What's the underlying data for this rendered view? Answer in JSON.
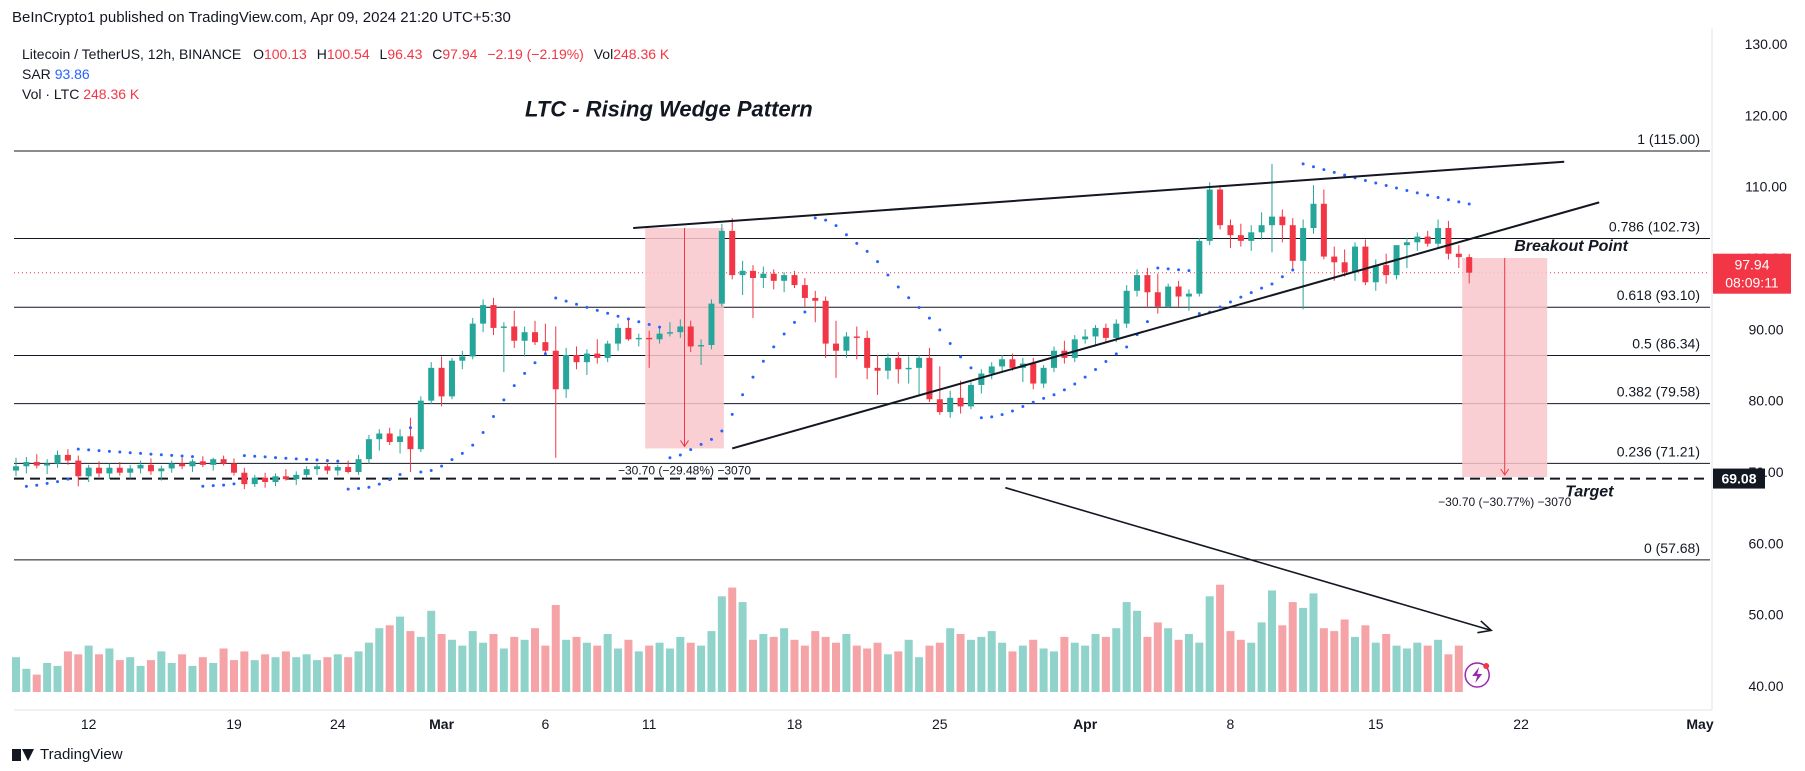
{
  "header": {
    "published": "BeInCrypto1 published on TradingView.com, Apr 09, 2024 21:20 UTC+5:30"
  },
  "legend": {
    "symbol": "Litecoin / TetherUS, 12h, BINANCE",
    "o_label": "O",
    "o": "100.13",
    "h_label": "H",
    "h": "100.54",
    "l_label": "L",
    "l": "96.43",
    "c_label": "C",
    "c": "97.94",
    "change": "−2.19 (−2.19%)",
    "vol_label": "Vol",
    "vol": "248.36 K",
    "sar_label": "SAR",
    "sar": "93.86",
    "vol_ltc_label": "Vol · LTC",
    "vol_ltc": "248.36 K"
  },
  "footer": {
    "brand": "TradingView"
  },
  "colors": {
    "up": "#26a69a",
    "down": "#f23645",
    "vol_up": "#8fd3cb",
    "vol_down": "#f5a3a6",
    "sar": "#2962ff",
    "box": "#f9c7cb"
  },
  "chart_data": {
    "type": "candlestick",
    "title": "LTC - Rising Wedge Pattern",
    "ylim": [
      38.5,
      131.5
    ],
    "y_ticks": [
      40,
      50,
      60,
      70,
      80,
      90,
      100,
      110,
      120,
      130
    ],
    "y_tick_labels": [
      "40.00",
      "50.00",
      "60.00",
      "70.00",
      "80.00",
      "90.00",
      "100.00",
      "110.00",
      "120.00",
      "130.00"
    ],
    "x_ticks": [
      {
        "label": "12",
        "bar": 7
      },
      {
        "label": "19",
        "bar": 21
      },
      {
        "label": "24",
        "bar": 31
      },
      {
        "label": "Mar",
        "bar": 41
      },
      {
        "label": "6",
        "bar": 51
      },
      {
        "label": "11",
        "bar": 61
      },
      {
        "label": "18",
        "bar": 75
      },
      {
        "label": "25",
        "bar": 89
      },
      {
        "label": "Apr",
        "bar": 103
      },
      {
        "label": "8",
        "bar": 117
      },
      {
        "label": "15",
        "bar": 131
      },
      {
        "label": "22",
        "bar": 145
      },
      {
        "label": "May",
        "bar": 163
      }
    ],
    "bar_count_visible": 164,
    "candles": [
      {
        "o": 70.2,
        "h": 72.0,
        "l": 69.4,
        "c": 70.8
      },
      {
        "o": 70.8,
        "h": 72.1,
        "l": 69.8,
        "c": 71.4
      },
      {
        "o": 71.4,
        "h": 72.5,
        "l": 70.5,
        "c": 70.9
      },
      {
        "o": 70.9,
        "h": 71.8,
        "l": 69.7,
        "c": 71.2
      },
      {
        "o": 71.2,
        "h": 73.0,
        "l": 70.6,
        "c": 72.4
      },
      {
        "o": 72.4,
        "h": 73.2,
        "l": 71.0,
        "c": 71.6
      },
      {
        "o": 71.6,
        "h": 72.3,
        "l": 68.0,
        "c": 69.4
      },
      {
        "o": 69.4,
        "h": 71.0,
        "l": 68.6,
        "c": 70.6
      },
      {
        "o": 70.6,
        "h": 71.5,
        "l": 69.3,
        "c": 69.8
      },
      {
        "o": 69.8,
        "h": 71.2,
        "l": 69.0,
        "c": 70.6
      },
      {
        "o": 70.6,
        "h": 71.4,
        "l": 69.5,
        "c": 69.9
      },
      {
        "o": 69.9,
        "h": 71.0,
        "l": 69.1,
        "c": 70.5
      },
      {
        "o": 70.5,
        "h": 71.6,
        "l": 69.8,
        "c": 71.0
      },
      {
        "o": 71.0,
        "h": 71.9,
        "l": 69.6,
        "c": 70.1
      },
      {
        "o": 70.1,
        "h": 70.9,
        "l": 68.8,
        "c": 70.5
      },
      {
        "o": 70.5,
        "h": 71.6,
        "l": 69.9,
        "c": 71.2
      },
      {
        "o": 71.2,
        "h": 72.0,
        "l": 70.4,
        "c": 70.8
      },
      {
        "o": 70.8,
        "h": 71.8,
        "l": 70.0,
        "c": 71.5
      },
      {
        "o": 71.5,
        "h": 72.2,
        "l": 70.7,
        "c": 71.0
      },
      {
        "o": 71.0,
        "h": 72.0,
        "l": 70.2,
        "c": 71.8
      },
      {
        "o": 71.8,
        "h": 72.3,
        "l": 70.9,
        "c": 71.2
      },
      {
        "o": 71.2,
        "h": 71.9,
        "l": 69.5,
        "c": 69.9
      },
      {
        "o": 69.9,
        "h": 70.6,
        "l": 67.6,
        "c": 68.3
      },
      {
        "o": 68.3,
        "h": 69.6,
        "l": 67.9,
        "c": 69.2
      },
      {
        "o": 69.2,
        "h": 69.9,
        "l": 67.8,
        "c": 68.6
      },
      {
        "o": 68.6,
        "h": 69.8,
        "l": 68.0,
        "c": 69.4
      },
      {
        "o": 69.4,
        "h": 70.4,
        "l": 68.8,
        "c": 69.0
      },
      {
        "o": 69.0,
        "h": 70.1,
        "l": 68.2,
        "c": 69.6
      },
      {
        "o": 69.6,
        "h": 70.8,
        "l": 69.2,
        "c": 70.4
      },
      {
        "o": 70.4,
        "h": 71.2,
        "l": 69.6,
        "c": 70.8
      },
      {
        "o": 70.8,
        "h": 71.3,
        "l": 69.7,
        "c": 70.2
      },
      {
        "o": 70.2,
        "h": 71.0,
        "l": 69.5,
        "c": 70.7
      },
      {
        "o": 70.7,
        "h": 71.6,
        "l": 69.8,
        "c": 70.0
      },
      {
        "o": 70.0,
        "h": 72.4,
        "l": 69.6,
        "c": 71.8
      },
      {
        "o": 71.8,
        "h": 75.2,
        "l": 71.2,
        "c": 74.6
      },
      {
        "o": 74.6,
        "h": 76.0,
        "l": 73.0,
        "c": 75.4
      },
      {
        "o": 75.4,
        "h": 76.2,
        "l": 73.8,
        "c": 74.2
      },
      {
        "o": 74.2,
        "h": 76.0,
        "l": 72.6,
        "c": 75.0
      },
      {
        "o": 75.0,
        "h": 77.6,
        "l": 70.0,
        "c": 73.2
      },
      {
        "o": 73.2,
        "h": 80.6,
        "l": 72.8,
        "c": 80.0
      },
      {
        "o": 80.0,
        "h": 85.4,
        "l": 79.5,
        "c": 84.6
      },
      {
        "o": 84.6,
        "h": 86.2,
        "l": 79.2,
        "c": 80.6
      },
      {
        "o": 80.6,
        "h": 86.0,
        "l": 80.2,
        "c": 85.6
      },
      {
        "o": 85.6,
        "h": 87.0,
        "l": 84.4,
        "c": 86.2
      },
      {
        "o": 86.2,
        "h": 91.6,
        "l": 85.8,
        "c": 90.8
      },
      {
        "o": 90.8,
        "h": 94.2,
        "l": 89.6,
        "c": 93.4
      },
      {
        "o": 93.4,
        "h": 94.4,
        "l": 89.2,
        "c": 90.2
      },
      {
        "o": 90.2,
        "h": 91.0,
        "l": 84.0,
        "c": 90.4
      },
      {
        "o": 90.4,
        "h": 92.6,
        "l": 87.4,
        "c": 88.4
      },
      {
        "o": 88.4,
        "h": 90.4,
        "l": 86.2,
        "c": 89.6
      },
      {
        "o": 89.6,
        "h": 91.2,
        "l": 87.8,
        "c": 88.2
      },
      {
        "o": 88.2,
        "h": 90.8,
        "l": 86.6,
        "c": 87.0
      },
      {
        "o": 87.0,
        "h": 90.4,
        "l": 72.0,
        "c": 81.6
      },
      {
        "o": 81.6,
        "h": 87.4,
        "l": 80.4,
        "c": 86.4
      },
      {
        "o": 86.4,
        "h": 87.6,
        "l": 84.4,
        "c": 85.4
      },
      {
        "o": 85.4,
        "h": 87.2,
        "l": 83.6,
        "c": 86.6
      },
      {
        "o": 86.6,
        "h": 88.6,
        "l": 85.2,
        "c": 86.0
      },
      {
        "o": 86.0,
        "h": 88.4,
        "l": 85.4,
        "c": 88.0
      },
      {
        "o": 88.0,
        "h": 90.8,
        "l": 87.0,
        "c": 90.2
      },
      {
        "o": 90.2,
        "h": 91.4,
        "l": 88.4,
        "c": 88.6
      },
      {
        "o": 88.6,
        "h": 89.4,
        "l": 87.6,
        "c": 88.8
      },
      {
        "o": 88.8,
        "h": 89.8,
        "l": 84.6,
        "c": 88.6
      },
      {
        "o": 88.6,
        "h": 90.2,
        "l": 88.0,
        "c": 89.4
      },
      {
        "o": 89.4,
        "h": 91.0,
        "l": 89.0,
        "c": 89.6
      },
      {
        "o": 89.6,
        "h": 91.4,
        "l": 88.8,
        "c": 90.4
      },
      {
        "o": 90.4,
        "h": 91.2,
        "l": 86.8,
        "c": 87.6
      },
      {
        "o": 87.6,
        "h": 88.6,
        "l": 85.0,
        "c": 87.8
      },
      {
        "o": 87.8,
        "h": 94.2,
        "l": 87.2,
        "c": 93.6
      },
      {
        "o": 93.6,
        "h": 104.8,
        "l": 93.2,
        "c": 103.8
      },
      {
        "o": 103.8,
        "h": 105.6,
        "l": 97.0,
        "c": 97.6
      },
      {
        "o": 97.6,
        "h": 99.6,
        "l": 94.8,
        "c": 98.2
      },
      {
        "o": 98.2,
        "h": 99.0,
        "l": 91.6,
        "c": 97.2
      },
      {
        "o": 97.2,
        "h": 98.8,
        "l": 95.8,
        "c": 97.8
      },
      {
        "o": 97.8,
        "h": 98.4,
        "l": 95.6,
        "c": 96.8
      },
      {
        "o": 96.8,
        "h": 98.0,
        "l": 95.2,
        "c": 97.6
      },
      {
        "o": 97.6,
        "h": 98.2,
        "l": 95.8,
        "c": 96.2
      },
      {
        "o": 96.2,
        "h": 97.2,
        "l": 93.2,
        "c": 94.4
      },
      {
        "o": 94.4,
        "h": 95.4,
        "l": 91.0,
        "c": 94.0
      },
      {
        "o": 94.0,
        "h": 94.6,
        "l": 86.0,
        "c": 88.0
      },
      {
        "o": 88.0,
        "h": 91.2,
        "l": 83.2,
        "c": 87.0
      },
      {
        "o": 87.0,
        "h": 89.6,
        "l": 86.0,
        "c": 89.0
      },
      {
        "o": 89.0,
        "h": 90.4,
        "l": 85.8,
        "c": 88.8
      },
      {
        "o": 88.8,
        "h": 89.8,
        "l": 83.0,
        "c": 84.6
      },
      {
        "o": 84.6,
        "h": 86.4,
        "l": 80.8,
        "c": 84.2
      },
      {
        "o": 84.2,
        "h": 86.6,
        "l": 83.0,
        "c": 86.0
      },
      {
        "o": 86.0,
        "h": 86.8,
        "l": 82.4,
        "c": 84.4
      },
      {
        "o": 84.4,
        "h": 86.2,
        "l": 82.4,
        "c": 84.6
      },
      {
        "o": 84.6,
        "h": 86.4,
        "l": 80.6,
        "c": 86.0
      },
      {
        "o": 86.0,
        "h": 87.4,
        "l": 79.8,
        "c": 80.2
      },
      {
        "o": 80.2,
        "h": 84.8,
        "l": 78.0,
        "c": 78.4
      },
      {
        "o": 78.4,
        "h": 81.4,
        "l": 77.6,
        "c": 80.4
      },
      {
        "o": 80.4,
        "h": 82.8,
        "l": 78.2,
        "c": 79.2
      },
      {
        "o": 79.2,
        "h": 82.6,
        "l": 78.8,
        "c": 82.2
      },
      {
        "o": 82.2,
        "h": 84.4,
        "l": 81.0,
        "c": 83.8
      },
      {
        "o": 83.8,
        "h": 85.4,
        "l": 83.0,
        "c": 84.8
      },
      {
        "o": 84.8,
        "h": 86.4,
        "l": 84.0,
        "c": 85.8
      },
      {
        "o": 85.8,
        "h": 86.6,
        "l": 84.2,
        "c": 84.6
      },
      {
        "o": 84.6,
        "h": 86.0,
        "l": 82.6,
        "c": 85.2
      },
      {
        "o": 85.2,
        "h": 86.0,
        "l": 81.6,
        "c": 82.4
      },
      {
        "o": 82.4,
        "h": 85.0,
        "l": 81.8,
        "c": 84.6
      },
      {
        "o": 84.6,
        "h": 87.6,
        "l": 84.0,
        "c": 87.0
      },
      {
        "o": 87.0,
        "h": 88.4,
        "l": 85.2,
        "c": 86.0
      },
      {
        "o": 86.0,
        "h": 89.2,
        "l": 85.4,
        "c": 88.6
      },
      {
        "o": 88.6,
        "h": 90.0,
        "l": 88.0,
        "c": 89.0
      },
      {
        "o": 89.0,
        "h": 90.6,
        "l": 87.6,
        "c": 90.2
      },
      {
        "o": 90.2,
        "h": 90.8,
        "l": 88.2,
        "c": 88.8
      },
      {
        "o": 88.8,
        "h": 91.4,
        "l": 88.2,
        "c": 90.8
      },
      {
        "o": 90.8,
        "h": 96.2,
        "l": 90.2,
        "c": 95.4
      },
      {
        "o": 95.4,
        "h": 98.4,
        "l": 94.6,
        "c": 97.6
      },
      {
        "o": 97.6,
        "h": 98.6,
        "l": 93.0,
        "c": 95.2
      },
      {
        "o": 95.2,
        "h": 97.8,
        "l": 92.2,
        "c": 93.2
      },
      {
        "o": 93.2,
        "h": 96.4,
        "l": 93.0,
        "c": 96.0
      },
      {
        "o": 96.0,
        "h": 96.8,
        "l": 93.2,
        "c": 94.6
      },
      {
        "o": 94.6,
        "h": 95.6,
        "l": 92.6,
        "c": 95.0
      },
      {
        "o": 95.0,
        "h": 102.8,
        "l": 94.6,
        "c": 102.4
      },
      {
        "o": 102.4,
        "h": 110.6,
        "l": 101.8,
        "c": 109.6
      },
      {
        "o": 109.6,
        "h": 110.2,
        "l": 104.0,
        "c": 104.6
      },
      {
        "o": 104.6,
        "h": 105.4,
        "l": 101.4,
        "c": 103.2
      },
      {
        "o": 103.2,
        "h": 104.8,
        "l": 101.6,
        "c": 102.4
      },
      {
        "o": 102.4,
        "h": 104.6,
        "l": 101.0,
        "c": 103.6
      },
      {
        "o": 103.6,
        "h": 106.4,
        "l": 102.6,
        "c": 104.6
      },
      {
        "o": 104.6,
        "h": 113.2,
        "l": 100.8,
        "c": 105.8
      },
      {
        "o": 105.8,
        "h": 106.8,
        "l": 102.2,
        "c": 104.6
      },
      {
        "o": 104.6,
        "h": 105.6,
        "l": 98.4,
        "c": 99.6
      },
      {
        "o": 99.6,
        "h": 105.4,
        "l": 92.8,
        "c": 104.2
      },
      {
        "o": 104.2,
        "h": 110.2,
        "l": 103.4,
        "c": 107.6
      },
      {
        "o": 107.6,
        "h": 109.6,
        "l": 99.8,
        "c": 100.2
      },
      {
        "o": 100.2,
        "h": 101.6,
        "l": 96.8,
        "c": 99.4
      },
      {
        "o": 99.4,
        "h": 101.2,
        "l": 97.4,
        "c": 98.0
      },
      {
        "o": 98.0,
        "h": 102.2,
        "l": 96.8,
        "c": 101.6
      },
      {
        "o": 101.6,
        "h": 102.6,
        "l": 96.2,
        "c": 96.6
      },
      {
        "o": 96.6,
        "h": 99.8,
        "l": 95.4,
        "c": 99.0
      },
      {
        "o": 99.0,
        "h": 100.6,
        "l": 96.4,
        "c": 97.6
      },
      {
        "o": 97.6,
        "h": 101.4,
        "l": 97.0,
        "c": 101.8
      },
      {
        "o": 101.8,
        "h": 102.8,
        "l": 98.6,
        "c": 102.2
      },
      {
        "o": 102.2,
        "h": 103.6,
        "l": 101.0,
        "c": 103.0
      },
      {
        "o": 103.0,
        "h": 103.8,
        "l": 101.6,
        "c": 102.0
      },
      {
        "o": 102.0,
        "h": 105.4,
        "l": 101.4,
        "c": 104.2
      },
      {
        "o": 104.2,
        "h": 105.2,
        "l": 99.8,
        "c": 100.6
      },
      {
        "o": 100.6,
        "h": 101.8,
        "l": 98.6,
        "c": 100.13
      },
      {
        "o": 100.13,
        "h": 100.54,
        "l": 96.43,
        "c": 97.94
      }
    ],
    "volume": [
      12,
      8,
      6,
      10,
      9,
      14,
      13,
      16,
      13,
      15,
      11,
      12,
      9,
      11,
      14,
      10,
      13,
      9,
      12,
      10,
      15,
      11,
      14,
      11,
      13,
      12,
      14,
      12,
      13,
      11,
      12,
      13,
      12,
      14,
      17,
      22,
      23,
      26,
      21,
      19,
      28,
      20,
      18,
      16,
      21,
      17,
      20,
      15,
      19,
      18,
      22,
      16,
      30,
      18,
      19,
      17,
      16,
      20,
      15,
      18,
      14,
      16,
      17,
      15,
      19,
      17,
      16,
      21,
      33,
      36,
      31,
      18,
      20,
      19,
      22,
      18,
      16,
      21,
      19,
      17,
      20,
      16,
      15,
      17,
      13,
      14,
      18,
      12,
      16,
      17,
      22,
      20,
      18,
      19,
      21,
      17,
      14,
      16,
      18,
      15,
      14,
      19,
      17,
      16,
      20,
      19,
      22,
      31,
      28,
      19,
      24,
      22,
      18,
      20,
      17,
      33,
      37,
      21,
      18,
      17,
      24,
      35,
      23,
      31,
      29,
      34,
      22,
      21,
      25,
      19,
      23,
      17,
      20,
      16,
      15,
      17,
      16,
      18,
      13,
      16
    ]
  },
  "overlay": {
    "fib_levels": [
      {
        "label": "1 (115.00)",
        "value": 115.0
      },
      {
        "label": "0.786 (102.73)",
        "value": 102.73
      },
      {
        "label": "0.618 (93.10)",
        "value": 93.1
      },
      {
        "label": "0.5 (86.34)",
        "value": 86.34
      },
      {
        "label": "0.382 (79.58)",
        "value": 79.58
      },
      {
        "label": "0.236 (71.21)",
        "value": 71.21
      },
      {
        "label": "0 (57.68)",
        "value": 57.68
      }
    ],
    "target_value": 69.08,
    "target_label": "69.08",
    "current_price_label": "97.94",
    "countdown_label": "08:09:11",
    "breakout_label": "Breakout Point",
    "target_text": "Target",
    "measure_1_label": "−30.70 (−29.48%) −3070",
    "measure_2_label": "−30.70 (−30.77%) −3070"
  }
}
